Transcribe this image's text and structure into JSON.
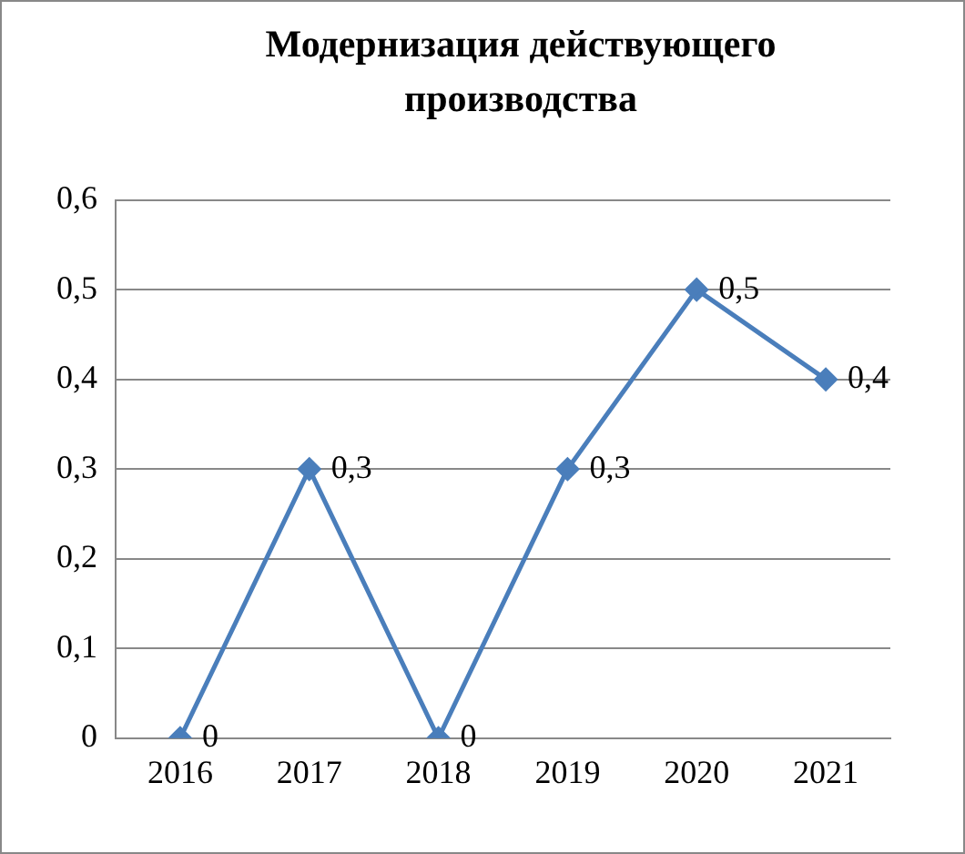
{
  "chart_data": {
    "type": "line",
    "title": "Модернизация действующего производства",
    "categories": [
      "2016",
      "2017",
      "2018",
      "2019",
      "2020",
      "2021"
    ],
    "series": [
      {
        "color": "#4a7ebb",
        "values": [
          0,
          0.3,
          0,
          0.3,
          0.5,
          0.4
        ],
        "value_labels": [
          "0",
          "0,3",
          "0",
          "0,3",
          "0,5",
          "0,4"
        ]
      }
    ],
    "ylim": [
      0,
      0.6
    ],
    "yticks": [
      0,
      {
        "value": 0.1,
        "label": "0,1"
      },
      {
        "value": 0.2,
        "label": "0,2"
      },
      {
        "value": 0.3,
        "label": "0,3"
      },
      {
        "value": 0.4,
        "label": "0,4"
      },
      {
        "value": 0.5,
        "label": "0,5"
      },
      {
        "value": 0.6,
        "label": "0,6"
      }
    ],
    "grid": "y",
    "legend": false,
    "marker": "diamond",
    "line_style": "solid"
  }
}
